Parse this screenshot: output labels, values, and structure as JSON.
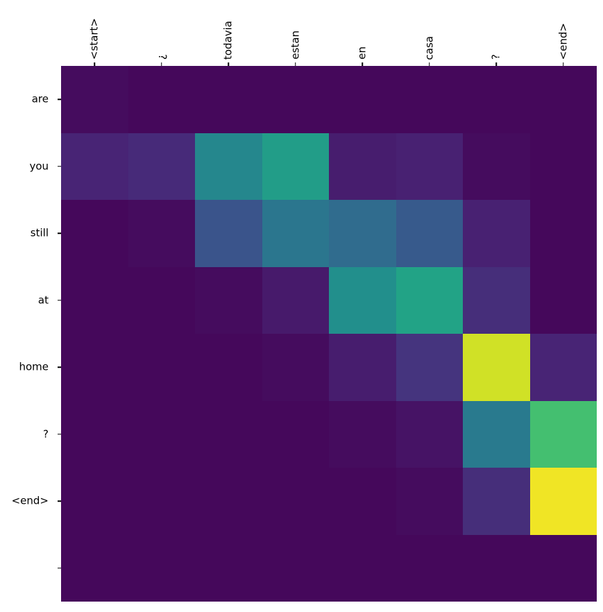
{
  "chart_data": {
    "type": "heatmap",
    "colormap": "viridis",
    "vmin": 0,
    "vmax": 1,
    "legend": "none",
    "grid": false,
    "x_categories": [
      "<start>",
      "¿",
      "todavia",
      "estan",
      "en",
      "casa",
      "?",
      "<end>"
    ],
    "y_categories": [
      "are",
      "you",
      "still",
      "at",
      "home",
      "?",
      "<end>",
      ""
    ],
    "values": [
      [
        0.03,
        0.02,
        0.02,
        0.02,
        0.02,
        0.02,
        0.02,
        0.02
      ],
      [
        0.1,
        0.12,
        0.46,
        0.55,
        0.08,
        0.09,
        0.03,
        0.02
      ],
      [
        0.02,
        0.03,
        0.26,
        0.39,
        0.35,
        0.28,
        0.09,
        0.02
      ],
      [
        0.02,
        0.02,
        0.03,
        0.07,
        0.49,
        0.58,
        0.13,
        0.02
      ],
      [
        0.02,
        0.02,
        0.02,
        0.03,
        0.08,
        0.15,
        0.93,
        0.1
      ],
      [
        0.02,
        0.02,
        0.02,
        0.02,
        0.03,
        0.05,
        0.41,
        0.7
      ],
      [
        0.02,
        0.02,
        0.02,
        0.02,
        0.02,
        0.03,
        0.13,
        0.98
      ],
      [
        0.02,
        0.02,
        0.02,
        0.02,
        0.02,
        0.02,
        0.02,
        0.02
      ]
    ],
    "title": "",
    "xlabel": "",
    "ylabel": ""
  },
  "colors": {
    "background": "#ffffff",
    "min_color": "#440154",
    "max_color": "#fde725",
    "label_color": "#000000"
  }
}
